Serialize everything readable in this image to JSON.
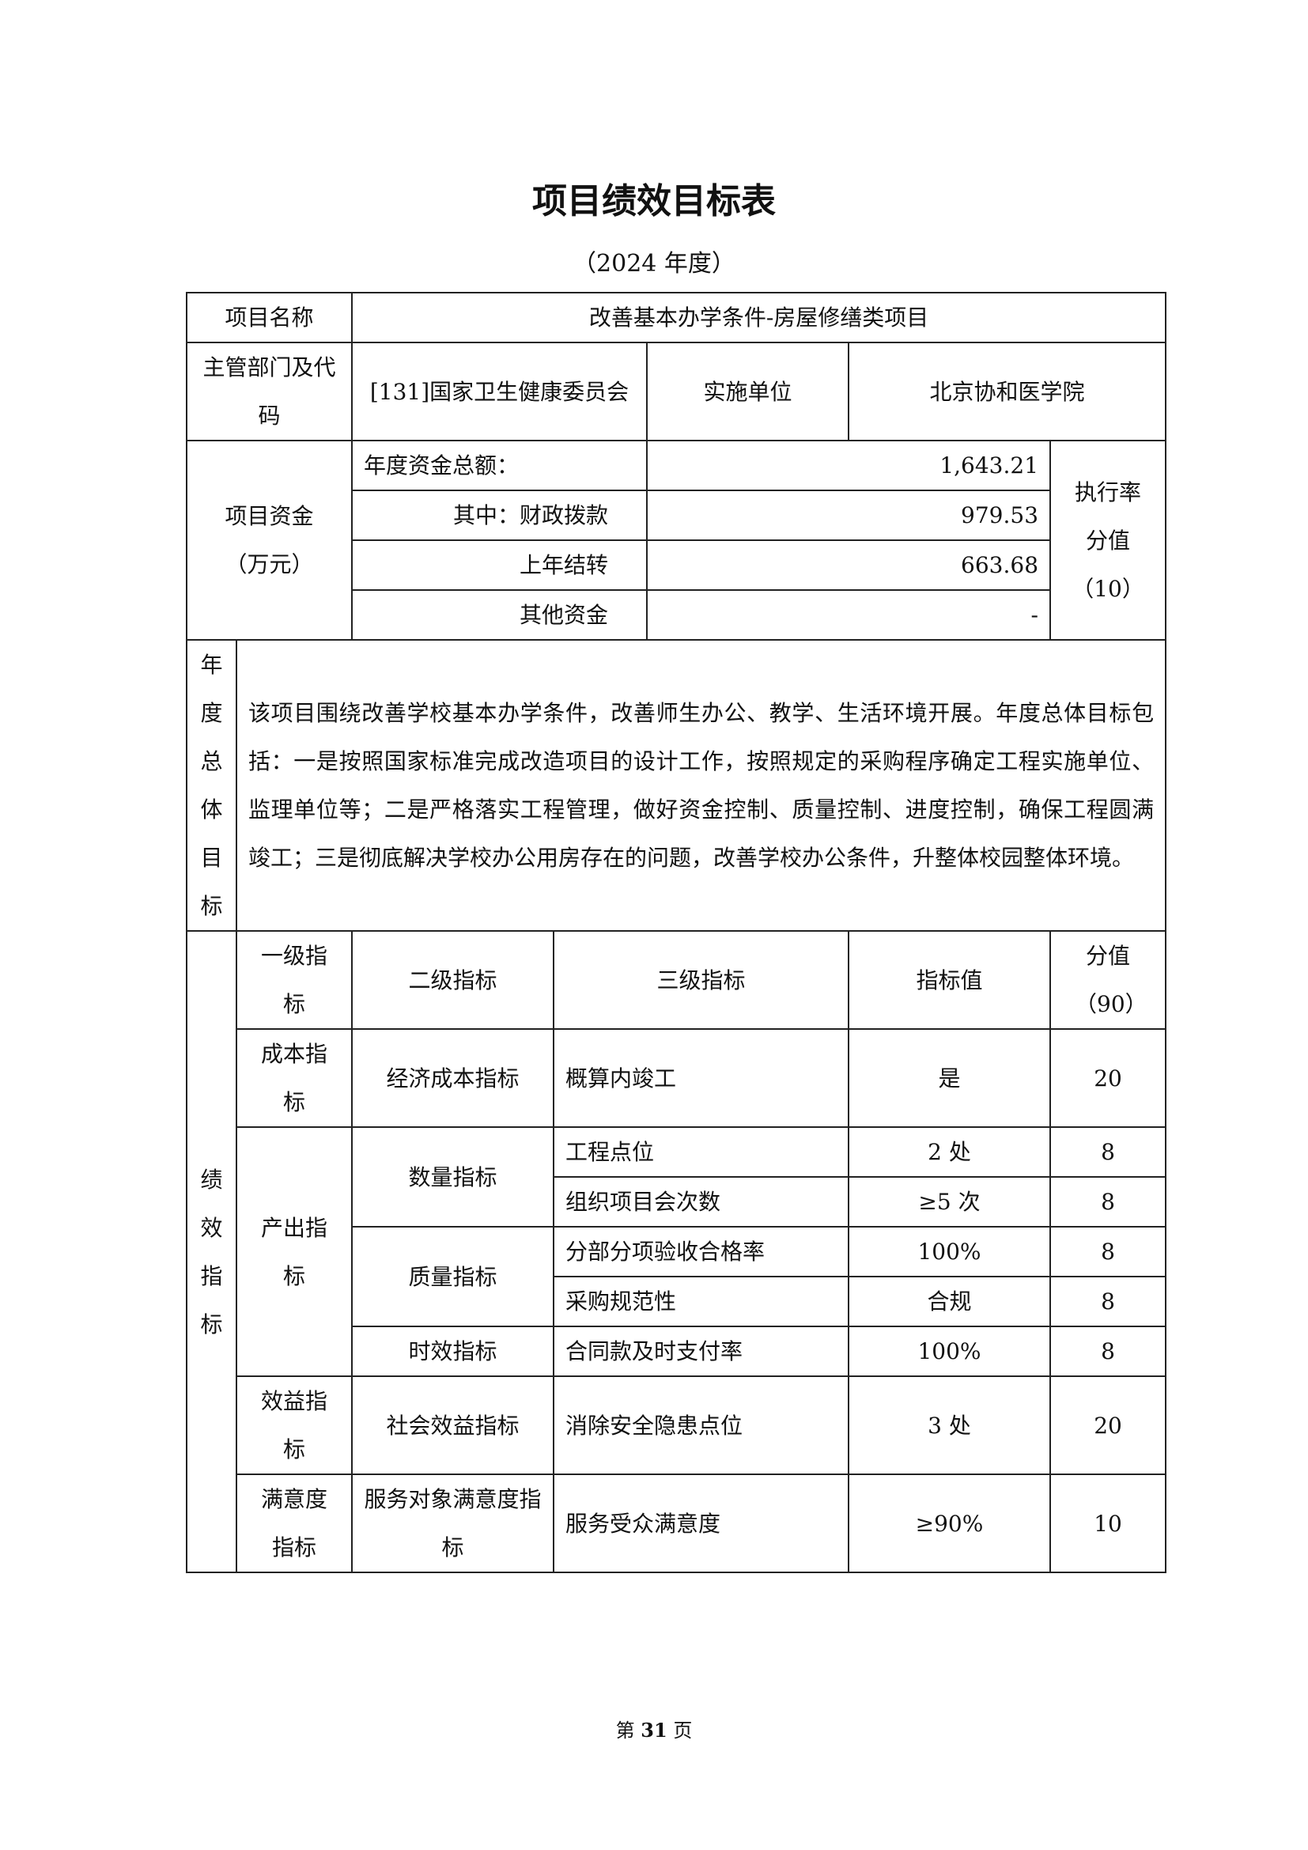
{
  "title": "项目绩效目标表",
  "subtitle": "（2024 年度）",
  "project": {
    "name_label": "项目名称",
    "name": "改善基本办学条件-房屋修缮类项目",
    "dept_label": "主管部门及代码",
    "dept": "[131]国家卫生健康委员会",
    "unit_label": "实施单位",
    "unit": "北京协和医学院"
  },
  "funds": {
    "label": "项目资金（万元）",
    "rows": [
      {
        "label": "年度资金总额：",
        "value": "1,643.21"
      },
      {
        "label": "其中：财政拨款",
        "value": "979.53"
      },
      {
        "label": "上年结转",
        "value": "663.68"
      },
      {
        "label": "其他资金",
        "value": "-"
      }
    ],
    "score_label": "执行率分值（10）"
  },
  "goal": {
    "label": "年度总体目标",
    "text": "该项目围绕改善学校基本办学条件，改善师生办公、教学、生活环境开展。年度总体目标包括：一是按照国家标准完成改造项目的设计工作，按照规定的采购程序确定工程实施单位、监理单位等；二是严格落实工程管理，做好资金控制、质量控制、进度控制，确保工程圆满竣工；三是彻底解决学校办公用房存在的问题，改善学校办公条件，升整体校园整体环境。"
  },
  "indicators": {
    "label": "绩效指标",
    "headers": [
      "一级指标",
      "二级指标",
      "三级指标",
      "指标值",
      "分值（90）"
    ],
    "rows": [
      {
        "l1": "成本指标",
        "l2": "经济成本指标",
        "l3": "概算内竣工",
        "value": "是",
        "score": "20"
      },
      {
        "l1": "产出指标",
        "l2": "数量指标",
        "l3": "工程点位",
        "value": "2 处",
        "score": "8"
      },
      {
        "l3": "组织项目会次数",
        "value": "≥5 次",
        "score": "8"
      },
      {
        "l2": "质量指标",
        "l3": "分部分项验收合格率",
        "value": "100%",
        "score": "8"
      },
      {
        "l3": "采购规范性",
        "value": "合规",
        "score": "8"
      },
      {
        "l2": "时效指标",
        "l3": "合同款及时支付率",
        "value": "100%",
        "score": "8"
      },
      {
        "l1": "效益指标",
        "l2": "社会效益指标",
        "l3": "消除安全隐患点位",
        "value": "3 处",
        "score": "20"
      },
      {
        "l1": "满意度指标",
        "l2": "服务对象满意度指标",
        "l3": "服务受众满意度",
        "value": "≥90%",
        "score": "10"
      }
    ]
  },
  "footer": {
    "prefix": "第",
    "page": "31",
    "suffix": "页"
  }
}
